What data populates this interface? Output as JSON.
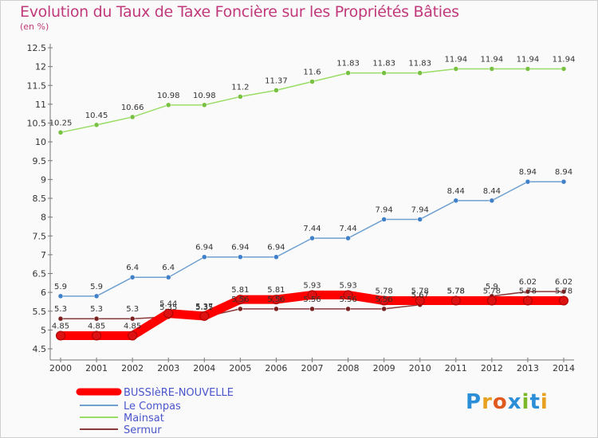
{
  "title": "Evolution du Taux de Taxe Foncière sur les Propriétés Bâties",
  "subtitle": "(en %)",
  "logo": {
    "text": "Proxiti",
    "colors": [
      "#2a8fd6",
      "#e8a020",
      "#e05a20",
      "#2a8fd6",
      "#7ab82a",
      "#2a8fd6",
      "#e8a020"
    ]
  },
  "chart_data": {
    "type": "line",
    "title": "Evolution du Taux de Taxe Foncière sur les Propriétés Bâties",
    "ylabel": "(en %)",
    "xlabel": "",
    "x": [
      "2000",
      "2001",
      "2002",
      "2003",
      "2004",
      "2005",
      "2006",
      "2007",
      "2008",
      "2009",
      "2010",
      "2011",
      "2012",
      "2013",
      "2014"
    ],
    "ylim": [
      4.5,
      12.5
    ],
    "yticks": [
      "4.5",
      "5",
      "5.5",
      "6",
      "6.5",
      "7",
      "7.5",
      "8",
      "8.5",
      "9",
      "9.5",
      "10",
      "10.5",
      "11",
      "11.5",
      "12",
      "12.5"
    ],
    "legend_position": "bottom-left",
    "series": [
      {
        "name": "BUSSIèRE-NOUVELLE",
        "color": "#ff0000",
        "marker": "#dd1111",
        "width": "thick",
        "values": [
          4.85,
          4.85,
          4.85,
          5.44,
          5.37,
          5.81,
          5.81,
          5.93,
          5.93,
          5.78,
          5.78,
          5.78,
          5.78,
          5.78,
          5.78
        ],
        "labels": [
          "4.85",
          "4.85",
          "4.85",
          "5.44",
          "5.37",
          "5.81",
          "5.81",
          "5.93",
          "5.93",
          "5.78",
          "5.78",
          "5.78",
          "5.78",
          "5.78",
          "5.78"
        ]
      },
      {
        "name": "Le Compas",
        "color": "#6fa0d0",
        "marker": "#3f80c8",
        "width": "thin",
        "values": [
          5.9,
          5.9,
          6.4,
          6.4,
          6.94,
          6.94,
          6.94,
          7.44,
          7.44,
          7.94,
          7.94,
          8.44,
          8.44,
          8.94,
          8.94
        ],
        "labels": [
          "5.9",
          "5.9",
          "6.4",
          "6.4",
          "6.94",
          "6.94",
          "6.94",
          "7.44",
          "7.44",
          "7.94",
          "7.94",
          "8.44",
          "8.44",
          "8.94",
          "8.94"
        ]
      },
      {
        "name": "Mainsat",
        "color": "#99dd66",
        "marker": "#77c040",
        "width": "thin",
        "values": [
          10.25,
          10.45,
          10.66,
          10.98,
          10.98,
          11.2,
          11.37,
          11.6,
          11.83,
          11.83,
          11.83,
          11.94,
          11.94,
          11.94,
          11.94
        ],
        "labels": [
          "10.25",
          "10.45",
          "10.66",
          "10.98",
          "10.98",
          "11.2",
          "11.37",
          "11.6",
          "11.83",
          "11.83",
          "11.83",
          "11.94",
          "11.94",
          "11.94",
          "11.94"
        ]
      },
      {
        "name": "Sermur",
        "color": "#8a3a3a",
        "marker": "#7a2222",
        "width": "thin",
        "values": [
          5.3,
          5.3,
          5.3,
          5.35,
          5.35,
          5.56,
          5.56,
          5.56,
          5.56,
          5.56,
          5.67,
          5.78,
          5.9,
          6.02,
          6.02
        ],
        "labels": [
          "5.3",
          "5.3",
          "5.3",
          "5.35",
          "5.35",
          "5.56",
          "5.56",
          "5.56",
          "5.56",
          "5.56",
          "5.67",
          "5.78",
          "5.9",
          "6.02",
          "6.02"
        ]
      }
    ]
  }
}
